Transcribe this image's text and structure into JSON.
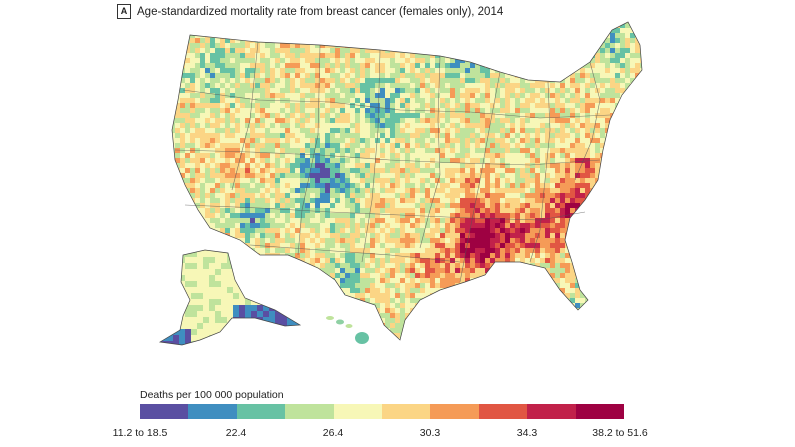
{
  "panel": {
    "letter": "A",
    "title": "Age-standardized mortality rate from breast cancer (females only), 2014"
  },
  "legend": {
    "title": "Deaths per 100 000 population",
    "labels": [
      "11.2 to 18.5",
      "22.4",
      "26.4",
      "30.3",
      "34.3",
      "38.2 to 51.6"
    ],
    "colors": [
      "#5a4fa2",
      "#3f8ec0",
      "#67c2a4",
      "#bfe39c",
      "#f7f7b7",
      "#fbd585",
      "#f59b57",
      "#e15643",
      "#c1214a",
      "#9e0142"
    ]
  },
  "palette": {
    "low": "#5a4fa2",
    "mid_low": "#67c2a4",
    "mid": "#f7f7b7",
    "high": "#f59b57",
    "very_high": "#9e0142",
    "state_border": "#555555"
  }
}
